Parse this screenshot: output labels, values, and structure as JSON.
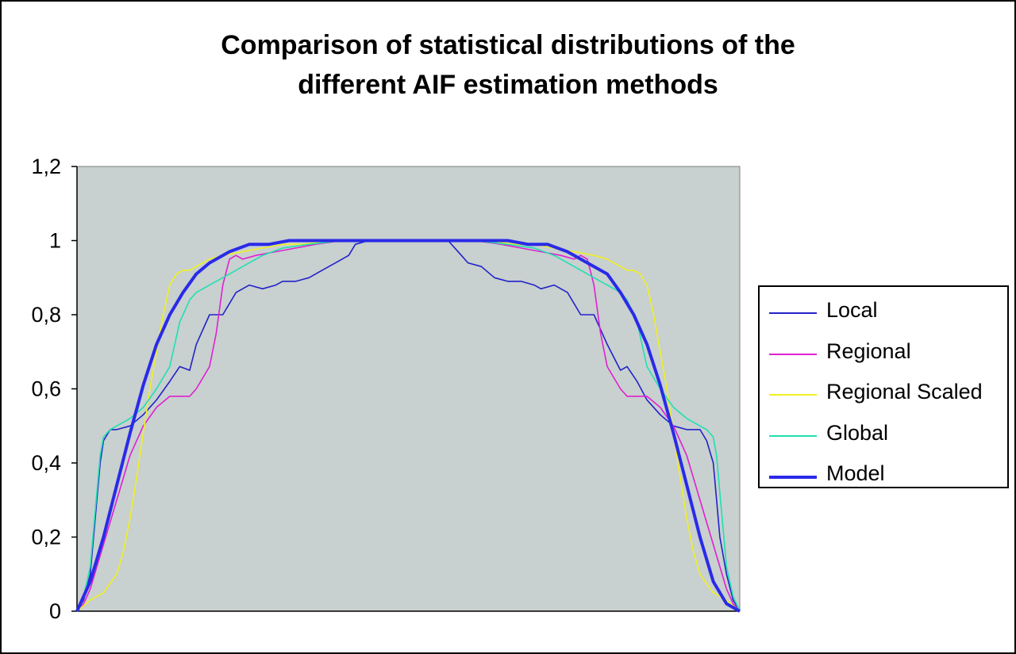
{
  "chart_data": {
    "type": "line",
    "title_lines": [
      "Comparison of statistical distributions of the",
      "different AIF estimation methods"
    ],
    "ylim": [
      0,
      1.2
    ],
    "yticks": [
      "0",
      "0,2",
      "0,4",
      "0,6",
      "0,8",
      "1",
      "1,2"
    ],
    "yticks_values": [
      0,
      0.2,
      0.4,
      0.6,
      0.8,
      1.0,
      1.2
    ],
    "xlim": [
      0,
      100
    ],
    "grid": false,
    "legend_position": "right",
    "plot_background": "#c8d0d0",
    "series": [
      {
        "name": "Local",
        "color": "#2222c8",
        "x": [
          0,
          1,
          2,
          3,
          3.5,
          4,
          5,
          6,
          8,
          10,
          12,
          14,
          15.5,
          17,
          18,
          20,
          22,
          24,
          26,
          28,
          30,
          31,
          33,
          35,
          37,
          39,
          41,
          42,
          44,
          56,
          58,
          59,
          61,
          63,
          65,
          67,
          69,
          70,
          72,
          74,
          76,
          78,
          80,
          82,
          83,
          84.5,
          86,
          88,
          90,
          92,
          94,
          95,
          96,
          96.5,
          97,
          98,
          99,
          100
        ],
        "y": [
          0,
          0.03,
          0.1,
          0.3,
          0.4,
          0.46,
          0.49,
          0.49,
          0.5,
          0.53,
          0.57,
          0.62,
          0.66,
          0.65,
          0.72,
          0.8,
          0.8,
          0.86,
          0.88,
          0.87,
          0.88,
          0.89,
          0.89,
          0.9,
          0.92,
          0.94,
          0.96,
          0.99,
          1.0,
          1.0,
          0.96,
          0.94,
          0.93,
          0.9,
          0.89,
          0.89,
          0.88,
          0.87,
          0.88,
          0.86,
          0.8,
          0.8,
          0.72,
          0.65,
          0.66,
          0.62,
          0.57,
          0.53,
          0.5,
          0.49,
          0.49,
          0.46,
          0.4,
          0.3,
          0.2,
          0.1,
          0.03,
          0
        ]
      },
      {
        "name": "Regional",
        "color": "#e020d0",
        "x": [
          0,
          1,
          2,
          4,
          6,
          8,
          10,
          12,
          14,
          15,
          17,
          18,
          20,
          21,
          22,
          23,
          24,
          25,
          27,
          30,
          33,
          36,
          40,
          45,
          55,
          60,
          64,
          67,
          70,
          73,
          75,
          76,
          77,
          78,
          79,
          80,
          82,
          83,
          85,
          86,
          88,
          90,
          92,
          94,
          96,
          98,
          99,
          100
        ],
        "y": [
          0,
          0.02,
          0.06,
          0.18,
          0.3,
          0.42,
          0.5,
          0.55,
          0.58,
          0.58,
          0.58,
          0.6,
          0.66,
          0.75,
          0.88,
          0.95,
          0.96,
          0.95,
          0.96,
          0.97,
          0.98,
          0.99,
          1.0,
          1.0,
          1.0,
          1.0,
          0.99,
          0.98,
          0.97,
          0.96,
          0.95,
          0.96,
          0.95,
          0.88,
          0.75,
          0.66,
          0.6,
          0.58,
          0.58,
          0.58,
          0.55,
          0.5,
          0.42,
          0.3,
          0.18,
          0.06,
          0.02,
          0
        ]
      },
      {
        "name": "Regional Scaled",
        "color": "#f0f020",
        "x": [
          0,
          2,
          4,
          6,
          7,
          8,
          9,
          10,
          11,
          12,
          13,
          14,
          15,
          16,
          17,
          18,
          20,
          22,
          25,
          28,
          31,
          34,
          38,
          45,
          55,
          62,
          66,
          69,
          72,
          75,
          78,
          80,
          82,
          83,
          84,
          85,
          86,
          87,
          88,
          89,
          90,
          91,
          92,
          93,
          94,
          96,
          98,
          100
        ],
        "y": [
          0,
          0.03,
          0.05,
          0.1,
          0.16,
          0.25,
          0.36,
          0.48,
          0.6,
          0.7,
          0.8,
          0.88,
          0.91,
          0.92,
          0.92,
          0.93,
          0.95,
          0.96,
          0.97,
          0.98,
          0.99,
          0.99,
          1.0,
          1.0,
          1.0,
          1.0,
          0.99,
          0.99,
          0.98,
          0.97,
          0.96,
          0.95,
          0.93,
          0.92,
          0.92,
          0.91,
          0.88,
          0.8,
          0.7,
          0.6,
          0.48,
          0.36,
          0.25,
          0.16,
          0.1,
          0.05,
          0.03,
          0
        ]
      },
      {
        "name": "Global",
        "color": "#20e0b0",
        "x": [
          0,
          1,
          2,
          3,
          3.5,
          4,
          5,
          6,
          8,
          10,
          12,
          14,
          15.5,
          17,
          18,
          20,
          22,
          25,
          28,
          31,
          35,
          40,
          45,
          55,
          60,
          65,
          69,
          72,
          75,
          78,
          80,
          82,
          83,
          84.5,
          86,
          88,
          90,
          92,
          94,
          95,
          96,
          96.5,
          97,
          98,
          99,
          100
        ],
        "y": [
          0,
          0.04,
          0.12,
          0.32,
          0.42,
          0.47,
          0.49,
          0.5,
          0.52,
          0.55,
          0.6,
          0.66,
          0.78,
          0.84,
          0.86,
          0.88,
          0.9,
          0.93,
          0.96,
          0.98,
          0.99,
          1.0,
          1.0,
          1.0,
          1.0,
          0.99,
          0.98,
          0.96,
          0.93,
          0.9,
          0.88,
          0.86,
          0.84,
          0.78,
          0.66,
          0.6,
          0.55,
          0.52,
          0.5,
          0.49,
          0.47,
          0.42,
          0.32,
          0.12,
          0.04,
          0
        ]
      },
      {
        "name": "Model",
        "color": "#2a2ae8",
        "width": 4,
        "x": [
          0,
          2,
          4,
          6,
          8,
          10,
          12,
          14,
          16,
          18,
          20,
          23,
          26,
          29,
          32,
          35,
          40,
          45,
          50,
          55,
          60,
          65,
          68,
          71,
          74,
          77,
          80,
          82,
          84,
          86,
          88,
          90,
          92,
          94,
          96,
          98,
          100
        ],
        "y": [
          0,
          0.08,
          0.2,
          0.34,
          0.48,
          0.61,
          0.72,
          0.8,
          0.86,
          0.91,
          0.94,
          0.97,
          0.99,
          0.99,
          1.0,
          1.0,
          1.0,
          1.0,
          1.0,
          1.0,
          1.0,
          1.0,
          0.99,
          0.99,
          0.97,
          0.94,
          0.91,
          0.86,
          0.8,
          0.72,
          0.61,
          0.48,
          0.34,
          0.2,
          0.08,
          0.02,
          0
        ]
      }
    ]
  }
}
